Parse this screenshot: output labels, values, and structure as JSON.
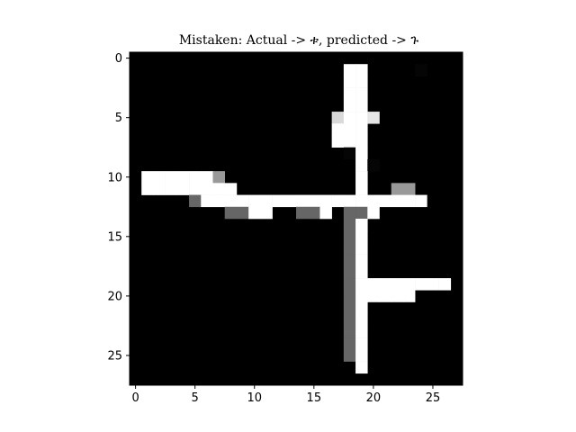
{
  "chart_data": {
    "type": "heatmap",
    "title": "Mistaken: Actual -> ቱ, predicted -> ጉ",
    "colormap": "gray",
    "value_range": [
      0,
      1
    ],
    "grid": false,
    "xlim": [
      -0.5,
      27.5
    ],
    "ylim": [
      27.5,
      -0.5
    ],
    "x_ticks": [
      0,
      5,
      10,
      15,
      20,
      25
    ],
    "y_ticks": [
      0,
      5,
      10,
      15,
      20,
      25
    ],
    "x_tick_labels": [
      "0",
      "5",
      "10",
      "15",
      "20",
      "25"
    ],
    "y_tick_labels": [
      "0",
      "5",
      "10",
      "15",
      "20",
      "25"
    ],
    "rows": 28,
    "cols": 28,
    "pixels": [
      [
        0,
        0,
        0,
        0,
        0,
        0,
        0,
        0,
        0,
        0,
        0,
        0,
        0,
        0,
        0,
        0,
        0,
        0,
        0,
        0,
        0,
        0,
        0,
        0,
        0,
        0,
        0,
        0
      ],
      [
        0,
        0,
        0,
        0,
        0,
        0,
        0,
        0,
        0,
        0,
        0,
        0,
        0,
        0,
        0,
        0,
        0,
        0,
        1,
        1,
        0,
        0,
        0,
        0,
        0.02,
        0,
        0,
        0
      ],
      [
        0,
        0,
        0,
        0,
        0,
        0,
        0,
        0,
        0,
        0,
        0,
        0,
        0,
        0,
        0,
        0,
        0,
        0,
        1,
        1,
        0,
        0,
        0,
        0,
        0,
        0,
        0,
        0
      ],
      [
        0,
        0,
        0,
        0,
        0,
        0,
        0,
        0,
        0,
        0,
        0,
        0,
        0,
        0,
        0,
        0,
        0,
        0,
        1,
        1,
        0,
        0,
        0,
        0,
        0,
        0,
        0,
        0
      ],
      [
        0,
        0,
        0,
        0,
        0,
        0,
        0,
        0,
        0,
        0,
        0,
        0,
        0,
        0,
        0,
        0,
        0,
        0,
        1,
        1,
        0,
        0,
        0,
        0,
        0,
        0,
        0,
        0
      ],
      [
        0,
        0,
        0,
        0,
        0,
        0,
        0,
        0,
        0,
        0,
        0,
        0,
        0,
        0,
        0,
        0,
        0,
        0.85,
        1,
        1,
        0.9,
        0,
        0,
        0,
        0,
        0,
        0,
        0
      ],
      [
        0,
        0,
        0,
        0,
        0,
        0,
        0,
        0,
        0,
        0,
        0,
        0,
        0,
        0,
        0,
        0,
        0,
        1,
        1,
        1,
        0,
        0,
        0,
        0,
        0,
        0,
        0,
        0
      ],
      [
        0,
        0,
        0,
        0,
        0,
        0,
        0,
        0,
        0,
        0,
        0,
        0,
        0,
        0,
        0,
        0,
        0,
        1,
        1,
        1,
        0,
        0,
        0,
        0,
        0,
        0,
        0,
        0
      ],
      [
        0,
        0,
        0,
        0,
        0,
        0,
        0,
        0,
        0,
        0,
        0,
        0,
        0,
        0,
        0,
        0,
        0,
        0,
        0.02,
        1,
        0,
        0,
        0,
        0,
        0,
        0,
        0,
        0
      ],
      [
        0,
        0,
        0,
        0,
        0,
        0,
        0,
        0,
        0,
        0,
        0,
        0,
        0,
        0,
        0,
        0,
        0,
        0,
        0,
        1,
        0.02,
        0,
        0,
        0,
        0,
        0,
        0,
        0
      ],
      [
        0,
        1,
        1,
        1,
        1,
        1,
        1,
        0.6,
        0,
        0,
        0,
        0,
        0,
        0,
        0,
        0,
        0,
        0,
        0,
        1,
        0,
        0,
        0,
        0,
        0,
        0,
        0,
        0
      ],
      [
        0,
        1,
        1,
        1,
        1,
        1,
        1,
        1,
        1,
        0,
        0,
        0,
        0,
        0,
        0,
        0,
        0,
        0,
        0,
        1,
        0,
        0,
        0.6,
        0.6,
        0,
        0,
        0,
        0
      ],
      [
        0,
        0,
        0,
        0,
        0,
        0.4,
        1,
        1,
        1,
        1,
        1,
        1,
        1,
        1,
        1,
        1,
        1,
        1,
        1,
        1,
        1,
        1,
        1,
        1,
        1,
        0,
        0,
        0
      ],
      [
        0,
        0,
        0,
        0,
        0,
        0,
        0,
        0,
        0.4,
        0.4,
        1,
        1,
        0,
        0,
        0.4,
        0.4,
        1,
        0,
        0.4,
        0.4,
        1,
        0,
        0,
        0,
        0,
        0,
        0,
        0
      ],
      [
        0,
        0,
        0,
        0,
        0,
        0,
        0,
        0,
        0,
        0,
        0,
        0,
        0,
        0,
        0,
        0,
        0,
        0,
        0.4,
        1,
        0,
        0,
        0,
        0,
        0,
        0,
        0,
        0
      ],
      [
        0,
        0,
        0,
        0,
        0,
        0,
        0,
        0,
        0,
        0,
        0,
        0,
        0,
        0,
        0,
        0,
        0,
        0,
        0.4,
        1,
        0,
        0,
        0,
        0,
        0,
        0,
        0,
        0
      ],
      [
        0,
        0,
        0,
        0,
        0,
        0,
        0,
        0,
        0,
        0,
        0,
        0,
        0,
        0,
        0,
        0,
        0,
        0,
        0.4,
        1,
        0,
        0,
        0,
        0,
        0,
        0,
        0,
        0
      ],
      [
        0,
        0,
        0,
        0,
        0,
        0,
        0,
        0,
        0,
        0,
        0,
        0,
        0,
        0,
        0,
        0,
        0,
        0,
        0.4,
        1,
        0,
        0,
        0,
        0,
        0,
        0,
        0,
        0
      ],
      [
        0,
        0,
        0,
        0,
        0,
        0,
        0,
        0,
        0,
        0,
        0,
        0,
        0,
        0,
        0,
        0,
        0,
        0,
        0.4,
        1,
        0,
        0,
        0,
        0,
        0,
        0,
        0,
        0
      ],
      [
        0,
        0,
        0,
        0,
        0,
        0,
        0,
        0,
        0,
        0,
        0,
        0,
        0,
        0,
        0,
        0,
        0,
        0,
        0.4,
        1,
        1,
        1,
        1,
        1,
        1,
        1,
        1,
        0
      ],
      [
        0,
        0,
        0,
        0,
        0,
        0,
        0,
        0,
        0,
        0,
        0,
        0,
        0,
        0,
        0,
        0,
        0,
        0,
        0.4,
        1,
        1,
        1,
        1,
        1,
        0,
        0,
        0,
        0
      ],
      [
        0,
        0,
        0,
        0,
        0,
        0,
        0,
        0,
        0,
        0,
        0,
        0,
        0,
        0,
        0,
        0,
        0,
        0,
        0.4,
        1,
        0,
        0,
        0,
        0,
        0,
        0,
        0,
        0
      ],
      [
        0,
        0,
        0,
        0,
        0,
        0,
        0,
        0,
        0,
        0,
        0,
        0,
        0,
        0,
        0,
        0,
        0,
        0,
        0.4,
        1,
        0,
        0,
        0,
        0,
        0,
        0,
        0,
        0
      ],
      [
        0,
        0,
        0,
        0,
        0,
        0,
        0,
        0,
        0,
        0,
        0,
        0,
        0,
        0,
        0,
        0,
        0,
        0,
        0.4,
        1,
        0,
        0,
        0,
        0,
        0,
        0,
        0,
        0
      ],
      [
        0,
        0,
        0,
        0,
        0,
        0,
        0,
        0,
        0,
        0,
        0,
        0,
        0,
        0,
        0,
        0,
        0,
        0,
        0.4,
        1,
        0,
        0,
        0,
        0,
        0,
        0,
        0,
        0
      ],
      [
        0,
        0,
        0,
        0,
        0,
        0,
        0,
        0,
        0,
        0,
        0,
        0,
        0,
        0,
        0,
        0,
        0,
        0,
        0.4,
        1,
        0,
        0,
        0,
        0,
        0,
        0,
        0,
        0
      ],
      [
        0,
        0,
        0,
        0,
        0,
        0,
        0,
        0,
        0,
        0,
        0,
        0,
        0,
        0,
        0,
        0,
        0,
        0,
        0,
        1,
        0,
        0,
        0,
        0,
        0,
        0,
        0,
        0
      ],
      [
        0,
        0,
        0,
        0,
        0,
        0,
        0,
        0,
        0,
        0,
        0,
        0,
        0,
        0,
        0,
        0,
        0,
        0,
        0,
        0,
        0,
        0,
        0,
        0,
        0,
        0,
        0,
        0
      ]
    ]
  }
}
